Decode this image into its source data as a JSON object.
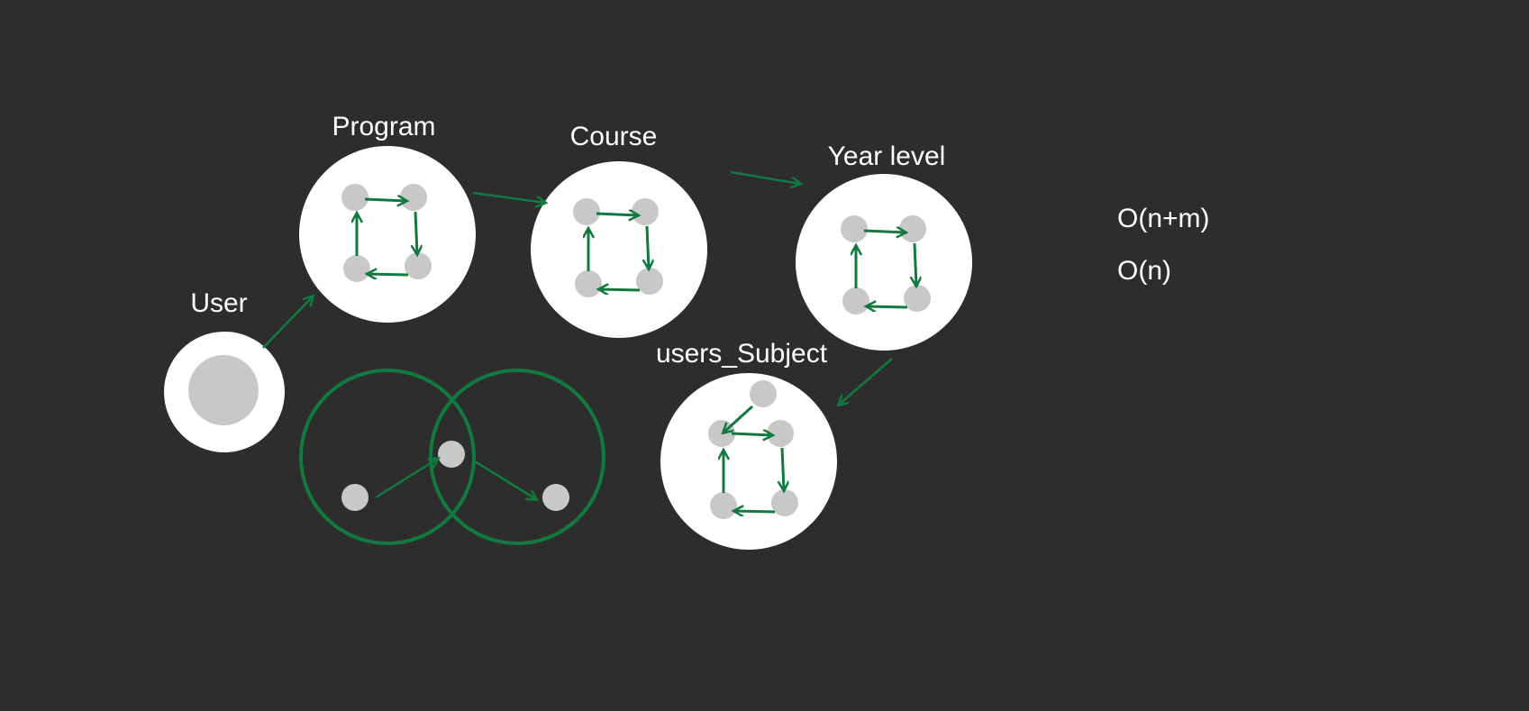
{
  "colors": {
    "background": "#2d2d2d",
    "circle": "#ffffff",
    "node": "#c8c8c8",
    "edge": "#117a3e"
  },
  "entities": {
    "user": "User",
    "program": "Program",
    "course": "Course",
    "year_level": "Year level",
    "users_subject": "users_Subject"
  },
  "complexity": {
    "first": "O(n+m)",
    "second": "O(n)"
  }
}
